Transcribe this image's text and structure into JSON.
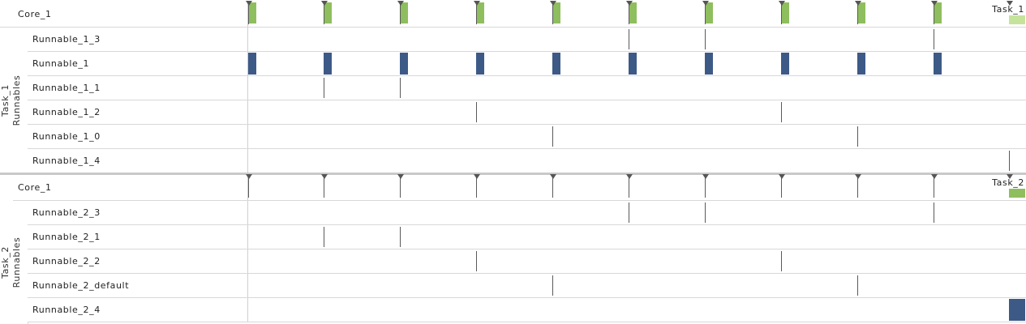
{
  "tasks": [
    {
      "core_label": "Core_1",
      "group_label": "Task_1\nRunnables",
      "task_tag": "Task_1",
      "runnables": [
        "Runnable_1_3",
        "Runnable_1",
        "Runnable_1_1",
        "Runnable_1_2",
        "Runnable_1_0",
        "Runnable_1_4"
      ]
    },
    {
      "core_label": "Core_1",
      "group_label": "Task_2\nRunnables",
      "task_tag": "Task_2",
      "runnables": [
        "Runnable_2_3",
        "Runnable_2_1",
        "Runnable_2_2",
        "Runnable_2_default",
        "Runnable_2_4"
      ]
    }
  ],
  "colors": {
    "core_bar": "#8fbe5e",
    "core_bar_light": "#c6e39c",
    "runnable_bar": "#3d5a87",
    "tick": "#5a5a5a",
    "marker": "#555555"
  }
}
